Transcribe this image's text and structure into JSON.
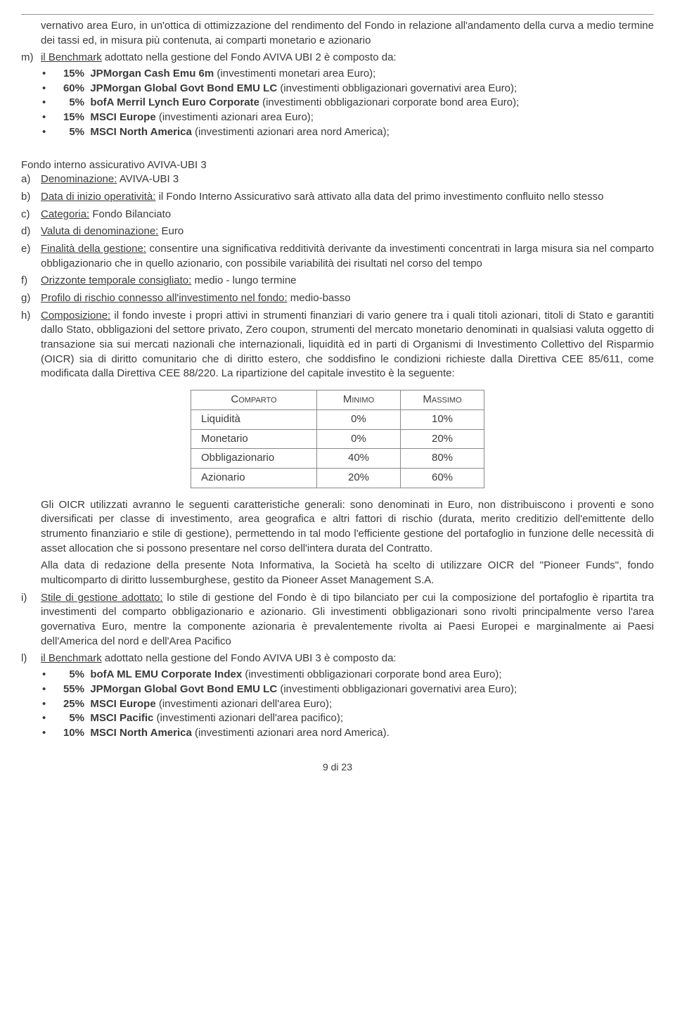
{
  "colors": {
    "text": "#3a3a3a",
    "rule": "#999999",
    "tableBorder": "#888888",
    "background": "#ffffff"
  },
  "top_continuation": {
    "text": "vernativo area Euro, in un'ottica di ottimizzazione del rendimento del Fondo in relazione all'andamento della curva a medio termine dei tassi ed, in misura più contenuta, ai comparti monetario e azionario"
  },
  "item_m": {
    "marker": "m)",
    "lead_pre": "il Benchmark",
    "lead_post": " adottato nella gestione del Fondo AVIVA UBI 2 è composto da:",
    "rows": [
      {
        "pct": "15%",
        "name": "JPMorgan Cash Emu 6m",
        "desc": " (investimenti monetari area Euro);"
      },
      {
        "pct": "60%",
        "name": "JPMorgan Global Govt Bond EMU LC",
        "desc": " (investimenti obbligazionari governativi area Euro);"
      },
      {
        "pct": "5%",
        "name": "bofA Merril Lynch Euro Corporate",
        "desc": " (investimenti obbligazionari corporate bond area Euro);"
      },
      {
        "pct": "15%",
        "name": "MSCI Europe",
        "desc": " (investimenti azionari area Euro);"
      },
      {
        "pct": "5%",
        "name": "MSCI North America",
        "desc": " (investimenti azionari area nord America);"
      }
    ]
  },
  "section3": {
    "heading": "Fondo interno assicurativo AVIVA-UBI 3",
    "items": {
      "a": {
        "marker": "a)",
        "label": "Denominazione:",
        "text": " AVIVA-UBI 3"
      },
      "b": {
        "marker": "b)",
        "label": "Data di inizio operatività:",
        "text": " il Fondo Interno Assicurativo sarà attivato alla data del primo investimento confluito nello stesso"
      },
      "c": {
        "marker": "c)",
        "label": "Categoria:",
        "text": " Fondo Bilanciato"
      },
      "d": {
        "marker": "d)",
        "label": "Valuta di denominazione:",
        "text": " Euro"
      },
      "e": {
        "marker": "e)",
        "label": "Finalità della gestione:",
        "text": " consentire una significativa redditività derivante da investimenti concentrati in larga misura sia nel comparto obbligazionario che in quello azionario, con possibile variabilità dei risultati nel corso del tempo"
      },
      "f": {
        "marker": "f)",
        "label": "Orizzonte temporale consigliato:",
        "text": " medio - lungo termine"
      },
      "g": {
        "marker": "g)",
        "label": "Profilo di rischio connesso all'investimento nel fondo:",
        "text": " medio-basso"
      },
      "h": {
        "marker": "h)",
        "label": "Composizione:",
        "text": " il fondo investe i propri attivi in strumenti finanziari di vario genere tra i quali titoli azionari, titoli di Stato e garantiti dallo Stato, obbligazioni del settore privato, Zero coupon, strumenti del mercato monetario denominati in qualsiasi valuta oggetto di transazione sia sui mercati nazionali che internazionali, liquidità ed in parti di Organismi di Investimento Collettivo del Risparmio (OICR) sia di diritto comunitario che di diritto estero, che soddisfino le condizioni richieste dalla Direttiva CEE 85/611, come modificata dalla Direttiva CEE 88/220. La ripartizione del capitale investito è la seguente:"
      }
    }
  },
  "comp_table": {
    "columns": [
      "Comparto",
      "Minimo",
      "Massimo"
    ],
    "rows": [
      [
        "Liquidità",
        "0%",
        "10%"
      ],
      [
        "Monetario",
        "0%",
        "20%"
      ],
      [
        "Obbligazionario",
        "40%",
        "80%"
      ],
      [
        "Azionario",
        "20%",
        "60%"
      ]
    ]
  },
  "after_table": {
    "para1": "Gli OICR utilizzati avranno le seguenti caratteristiche generali: sono denominati in Euro, non distribuiscono i proventi e sono diversificati per classe di investimento, area geografica e altri fattori di rischio (durata, merito creditizio dell'emittente dello strumento finanziario e stile di gestione), permettendo in tal modo l'efficiente gestione del portafoglio in funzione delle necessità di asset allocation che si possono presentare nel corso dell'intera durata del Contratto.",
    "para2": "Alla data di redazione della presente Nota Informativa, la Società ha scelto di utilizzare OICR del \"Pioneer Funds\", fondo multicomparto di diritto lussemburghese, gestito da Pioneer Asset Management S.A.",
    "i": {
      "marker": "i)",
      "label": "Stile di gestione adottato:",
      "text": " lo stile di gestione del Fondo è di tipo bilanciato per cui la composizione del portafoglio è ripartita tra investimenti del comparto obbligazionario e azionario. Gli investimenti obbligazionari sono rivolti principalmente verso l'area governativa Euro, mentre la componente azionaria è prevalentemente rivolta ai Paesi Europei e marginalmente ai Paesi dell'America del nord e dell'Area Pacifico"
    },
    "l": {
      "marker": "l)",
      "lead_pre": "il Benchmark",
      "lead_post": " adottato nella gestione del Fondo AVIVA UBI 3 è composto da:",
      "rows": [
        {
          "pct": "5%",
          "name": "bofA ML EMU Corporate Index",
          "desc": " (investimenti obbligazionari corporate bond area Euro);"
        },
        {
          "pct": "55%",
          "name": "JPMorgan Global Govt Bond EMU LC",
          "desc": " (investimenti obbligazionari governativi area Euro);"
        },
        {
          "pct": "25%",
          "name": "MSCI Europe",
          "desc": " (investimenti azionari dell'area Euro);"
        },
        {
          "pct": "5%",
          "name": "MSCI Pacific",
          "desc": " (investimenti azionari dell'area pacifico);"
        },
        {
          "pct": "10%",
          "name": "MSCI North America",
          "desc": " (investimenti azionari area nord America)."
        }
      ]
    }
  },
  "footer": "9 di 23"
}
